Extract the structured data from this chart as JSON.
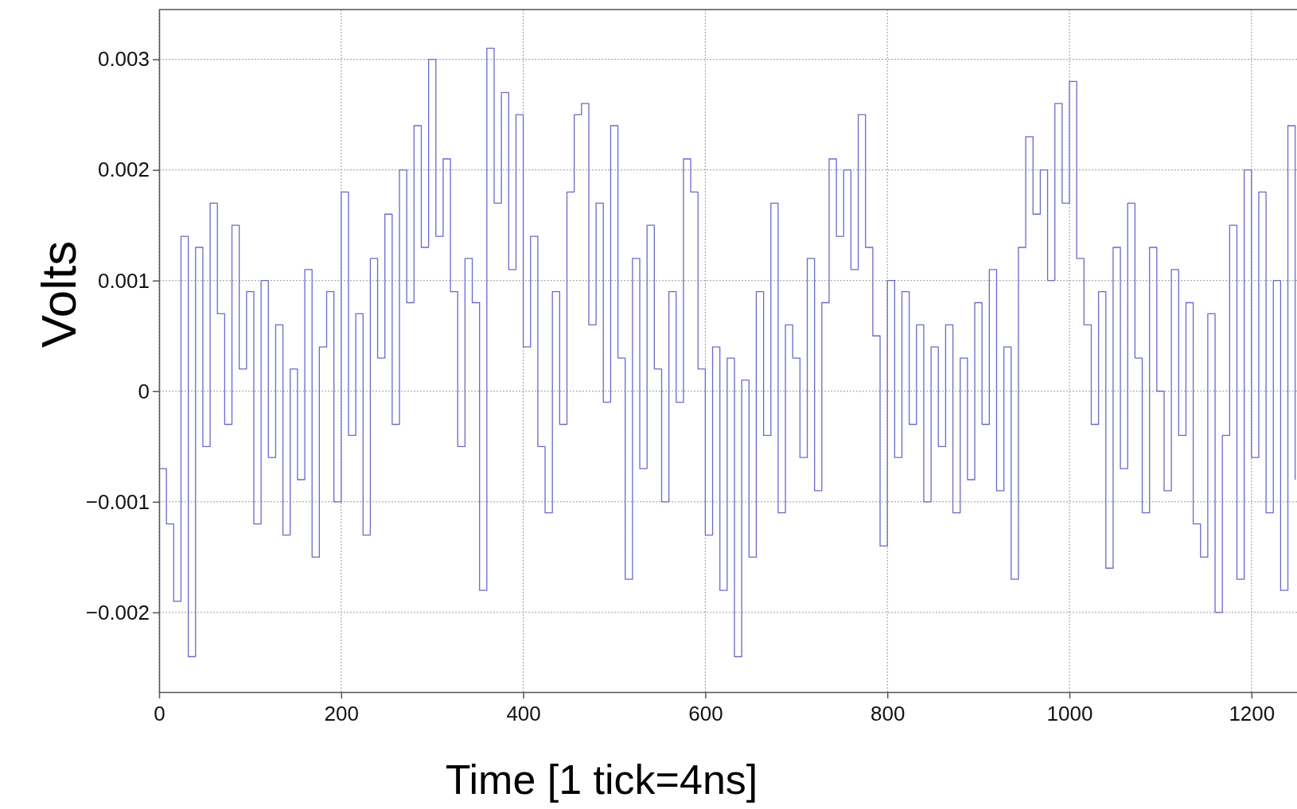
{
  "chart_data": {
    "type": "step",
    "xlabel": "Time [1 tick=4ns]",
    "ylabel": "Volts",
    "xlim": [
      0,
      1250
    ],
    "ylim": [
      -0.00272,
      0.00345
    ],
    "xticks": [
      0,
      200,
      400,
      600,
      800,
      1000,
      1200
    ],
    "yticks": [
      {
        "value": -0.002,
        "label": "−0.002"
      },
      {
        "value": -0.001,
        "label": "−0.001"
      },
      0,
      0.001,
      0.002,
      0.003
    ],
    "grid": true,
    "x": [
      0,
      8,
      16,
      24,
      32,
      40,
      48,
      56,
      64,
      72,
      80,
      88,
      96,
      104,
      112,
      120,
      128,
      136,
      144,
      152,
      160,
      168,
      176,
      184,
      192,
      200,
      208,
      216,
      224,
      232,
      240,
      248,
      256,
      264,
      272,
      280,
      288,
      296,
      304,
      312,
      320,
      328,
      336,
      344,
      352,
      360,
      368,
      376,
      384,
      392,
      400,
      408,
      416,
      424,
      432,
      440,
      448,
      456,
      464,
      472,
      480,
      488,
      496,
      504,
      512,
      520,
      528,
      536,
      544,
      552,
      560,
      568,
      576,
      584,
      592,
      600,
      608,
      616,
      624,
      632,
      640,
      648,
      656,
      664,
      672,
      680,
      688,
      696,
      704,
      712,
      720,
      728,
      736,
      744,
      752,
      760,
      768,
      776,
      784,
      792,
      800,
      808,
      816,
      824,
      832,
      840,
      848,
      856,
      864,
      872,
      880,
      888,
      896,
      904,
      912,
      920,
      928,
      936,
      944,
      952,
      960,
      968,
      976,
      984,
      992,
      1000,
      1008,
      1016,
      1024,
      1032,
      1040,
      1048,
      1056,
      1064,
      1072,
      1080,
      1088,
      1096,
      1104,
      1112,
      1120,
      1128,
      1136,
      1144,
      1152,
      1160,
      1168,
      1176,
      1184,
      1192,
      1200,
      1208,
      1216,
      1224,
      1232,
      1240,
      1248
    ],
    "series": [
      {
        "color": "#6a6ac8",
        "values": [
          -0.0007,
          -0.0012,
          -0.0019,
          0.0014,
          -0.0024,
          0.0013,
          -0.0005,
          0.0017,
          0.0007,
          -0.0003,
          0.0015,
          0.0002,
          0.0009,
          -0.0012,
          0.001,
          -0.0006,
          0.0006,
          -0.0013,
          0.0002,
          -0.0008,
          0.0011,
          -0.0015,
          0.0004,
          0.0009,
          -0.001,
          0.0018,
          -0.0004,
          0.0007,
          -0.0013,
          0.0012,
          0.0003,
          0.0016,
          -0.0003,
          0.002,
          0.0008,
          0.0024,
          0.0013,
          0.003,
          0.0014,
          0.0021,
          0.0009,
          -0.0005,
          0.0012,
          0.0008,
          -0.0018,
          0.0031,
          0.0017,
          0.0027,
          0.0011,
          0.0025,
          0.0004,
          0.0014,
          -0.0005,
          -0.0011,
          0.0009,
          -0.0003,
          0.0018,
          0.0025,
          0.0026,
          0.0006,
          0.0017,
          -0.0001,
          0.0024,
          0.0003,
          -0.0017,
          0.0012,
          -0.0007,
          0.0015,
          0.0002,
          -0.001,
          0.0009,
          -0.0001,
          0.0021,
          0.0018,
          0.0002,
          -0.0013,
          0.0004,
          -0.0018,
          0.0003,
          -0.0024,
          0.0001,
          -0.0015,
          0.0009,
          -0.0004,
          0.0017,
          -0.0011,
          0.0006,
          0.0003,
          -0.0006,
          0.0012,
          -0.0009,
          0.0008,
          0.0021,
          0.0014,
          0.002,
          0.0011,
          0.0025,
          0.0013,
          0.0005,
          -0.0014,
          0.001,
          -0.0006,
          0.0009,
          -0.0003,
          0.0006,
          -0.001,
          0.0004,
          -0.0005,
          0.0006,
          -0.0011,
          0.0003,
          -0.0008,
          0.0008,
          -0.0003,
          0.0011,
          -0.0009,
          0.0004,
          -0.0017,
          0.0013,
          0.0023,
          0.0016,
          0.002,
          0.001,
          0.0026,
          0.0017,
          0.0028,
          0.0012,
          0.0006,
          -0.0003,
          0.0009,
          -0.0016,
          0.0013,
          -0.0007,
          0.0017,
          0.0003,
          -0.0011,
          0.0013,
          0,
          -0.0009,
          0.0011,
          -0.0004,
          0.0008,
          -0.0012,
          -0.0015,
          0.0007,
          -0.002,
          -0.0004,
          0.0015,
          -0.0017,
          0.002,
          -0.0006,
          0.0018,
          -0.0011,
          0.001,
          -0.0018,
          0.0024,
          -0.0008
        ]
      }
    ]
  }
}
